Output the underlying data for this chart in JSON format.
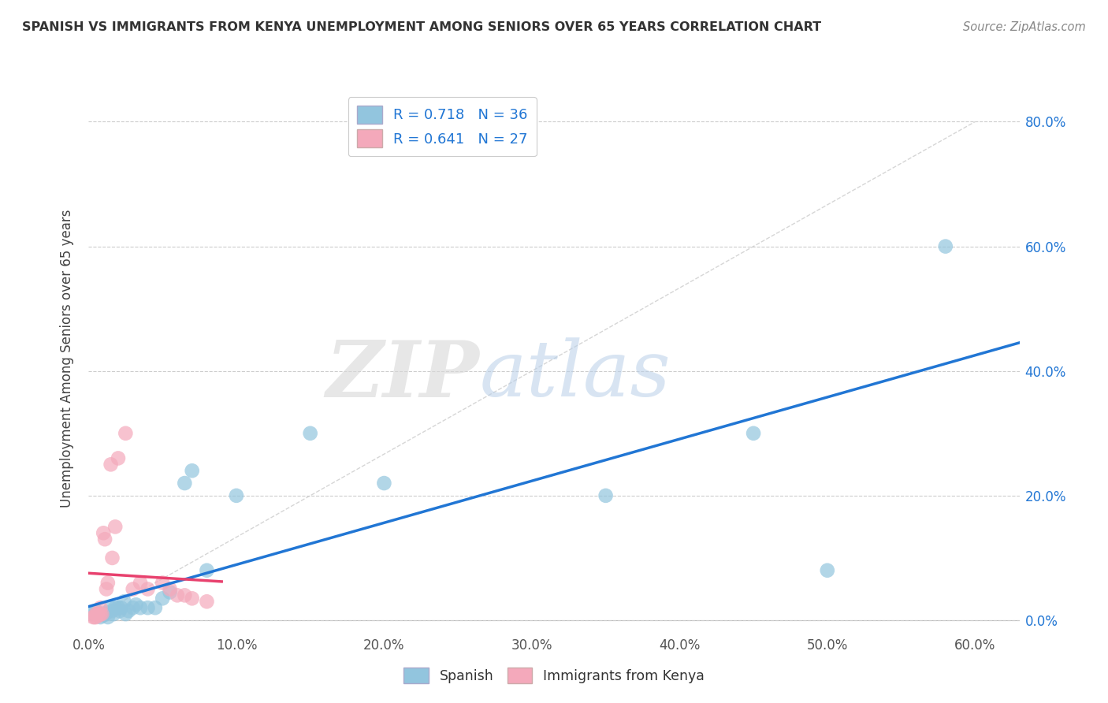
{
  "title": "SPANISH VS IMMIGRANTS FROM KENYA UNEMPLOYMENT AMONG SENIORS OVER 65 YEARS CORRELATION CHART",
  "source": "Source: ZipAtlas.com",
  "ylabel": "Unemployment Among Seniors over 65 years",
  "x_tick_labels": [
    "0.0%",
    "10.0%",
    "20.0%",
    "30.0%",
    "40.0%",
    "50.0%",
    "60.0%"
  ],
  "y_tick_labels_right": [
    "0.0%",
    "20.0%",
    "40.0%",
    "60.0%",
    "80.0%"
  ],
  "xlim": [
    0.0,
    0.63
  ],
  "ylim": [
    -0.02,
    0.86
  ],
  "legend_label1": "Spanish",
  "legend_label2": "Immigrants from Kenya",
  "r1": "0.718",
  "n1": "36",
  "r2": "0.641",
  "n2": "27",
  "color_blue": "#92c5de",
  "color_pink": "#f4a9bb",
  "color_blue_line": "#2176d4",
  "color_pink_line": "#e8416e",
  "color_right_axis": "#2176d4",
  "color_title": "#333333",
  "color_source": "#888888",
  "color_ylabel": "#444444",
  "color_gridline": "#cccccc",
  "color_diagline": "#cccccc",
  "spanish_x": [
    0.003,
    0.005,
    0.007,
    0.008,
    0.009,
    0.01,
    0.011,
    0.012,
    0.013,
    0.015,
    0.016,
    0.017,
    0.018,
    0.02,
    0.021,
    0.022,
    0.024,
    0.025,
    0.027,
    0.03,
    0.032,
    0.035,
    0.04,
    0.045,
    0.05,
    0.055,
    0.065,
    0.07,
    0.08,
    0.1,
    0.15,
    0.2,
    0.35,
    0.45,
    0.5,
    0.58
  ],
  "spanish_y": [
    0.01,
    0.015,
    0.01,
    0.005,
    0.01,
    0.008,
    0.01,
    0.012,
    0.005,
    0.02,
    0.015,
    0.01,
    0.02,
    0.02,
    0.015,
    0.02,
    0.03,
    0.01,
    0.015,
    0.02,
    0.025,
    0.02,
    0.02,
    0.02,
    0.035,
    0.045,
    0.22,
    0.24,
    0.08,
    0.2,
    0.3,
    0.22,
    0.2,
    0.3,
    0.08,
    0.6
  ],
  "kenya_x": [
    0.003,
    0.004,
    0.005,
    0.005,
    0.006,
    0.007,
    0.008,
    0.008,
    0.009,
    0.01,
    0.011,
    0.012,
    0.013,
    0.015,
    0.016,
    0.018,
    0.02,
    0.025,
    0.03,
    0.035,
    0.04,
    0.05,
    0.055,
    0.06,
    0.065,
    0.07,
    0.08
  ],
  "kenya_y": [
    0.005,
    0.005,
    0.01,
    0.005,
    0.01,
    0.008,
    0.01,
    0.02,
    0.01,
    0.14,
    0.13,
    0.05,
    0.06,
    0.25,
    0.1,
    0.15,
    0.26,
    0.3,
    0.05,
    0.06,
    0.05,
    0.06,
    0.05,
    0.04,
    0.04,
    0.035,
    0.03
  ]
}
